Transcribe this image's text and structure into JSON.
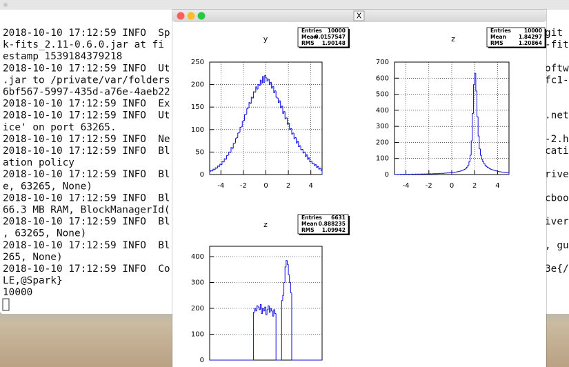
{
  "terminal": {
    "lines": [
      {
        "left": "2018-10-10 17:12:59 INFO  Sp",
        "right": "git"
      },
      {
        "left": "k-fits_2.11-0.6.0.jar at fi",
        "right": "-fit"
      },
      {
        "left": "estamp 1539184379218"
      },
      {
        "left": "2018-10-10 17:12:59 INFO  Ut",
        "right": "oftw"
      },
      {
        "left": ".jar to /private/var/folders",
        "right": "fc1-"
      },
      {
        "left": "6bf567-5997-435d-a76e-4aeb22"
      },
      {
        "left": "2018-10-10 17:12:59 INFO  Ex"
      },
      {
        "left": "2018-10-10 17:12:59 INFO  Ut",
        "right": ".net"
      },
      {
        "left": "ice' on port 63265."
      },
      {
        "left": "2018-10-10 17:12:59 INFO  Ne",
        "right": "-2.h"
      },
      {
        "left": "2018-10-10 17:12:59 INFO  Bl",
        "right": "cati"
      },
      {
        "left": "ation policy"
      },
      {
        "left": "2018-10-10 17:12:59 INFO  Bl",
        "right": "rive"
      },
      {
        "left": "e, 63265, None)"
      },
      {
        "left": "2018-10-10 17:12:59 INFO  Bl",
        "right": "cboo"
      },
      {
        "left": "66.3 MB RAM, BlockManagerId("
      },
      {
        "left": "2018-10-10 17:12:59 INFO  Bl",
        "right": "iver"
      },
      {
        "left": ", 63265, None)"
      },
      {
        "left": "2018-10-10 17:12:59 INFO  Bl",
        "right": ", gu"
      },
      {
        "left": "265, None)"
      },
      {
        "left": "2018-10-10 17:12:59 INFO  Co",
        "right": "3e{/"
      },
      {
        "left": "LE,@Spark}"
      },
      {
        "left": "10000"
      }
    ]
  },
  "x_window": {
    "title": "X"
  },
  "chart_data": [
    {
      "type": "histogram",
      "title": "y",
      "stats": [
        {
          "label": "Entries",
          "value": 10000
        },
        {
          "label": "Mean",
          "value": -0.0157547
        },
        {
          "label": "RMS",
          "value": 1.90148
        }
      ],
      "bins": [
        -5,
        -4.9,
        -4.8,
        -4.7,
        -4.6,
        -4.5,
        -4.4,
        -4.3,
        -4.2,
        -4.1,
        -4,
        -3.9,
        -3.8,
        -3.7,
        -3.6,
        -3.5,
        -3.4,
        -3.3,
        -3.2,
        -3.1,
        -3,
        -2.9,
        -2.8,
        -2.7,
        -2.6,
        -2.5,
        -2.4,
        -2.3,
        -2.2,
        -2.1,
        -2,
        -1.9,
        -1.8,
        -1.7,
        -1.6,
        -1.5,
        -1.4,
        -1.3,
        -1.2,
        -1.1,
        -1,
        -0.9,
        -0.8,
        -0.7,
        -0.6,
        -0.5,
        -0.4,
        -0.3,
        -0.2,
        -0.1,
        0,
        0.1,
        0.2,
        0.3,
        0.4,
        0.5,
        0.6,
        0.7,
        0.8,
        0.9,
        1,
        1.1,
        1.2,
        1.3,
        1.4,
        1.5,
        1.6,
        1.7,
        1.8,
        1.9,
        2,
        2.1,
        2.2,
        2.3,
        2.4,
        2.5,
        2.6,
        2.7,
        2.8,
        2.9,
        3,
        3.1,
        3.2,
        3.3,
        3.4,
        3.5,
        3.6,
        3.7,
        3.8,
        3.9,
        4,
        4.1,
        4.2,
        4.3,
        4.4,
        4.5,
        4.6,
        4.7,
        4.8,
        4.9,
        5
      ],
      "values": [
        7,
        9,
        8,
        12,
        11,
        15,
        14,
        19,
        18,
        23,
        22,
        29,
        28,
        35,
        34,
        42,
        43,
        50,
        49,
        60,
        58,
        69,
        70,
        80,
        82,
        92,
        94,
        105,
        106,
        118,
        120,
        133,
        134,
        146,
        148,
        160,
        158,
        172,
        170,
        184,
        183,
        195,
        190,
        200,
        198,
        210,
        203,
        218,
        205,
        220,
        215,
        208,
        212,
        200,
        205,
        192,
        196,
        182,
        186,
        172,
        170,
        160,
        164,
        148,
        152,
        136,
        140,
        124,
        126,
        112,
        114,
        100,
        102,
        90,
        92,
        80,
        82,
        70,
        74,
        62,
        64,
        55,
        56,
        48,
        50,
        40,
        44,
        34,
        37,
        28,
        30,
        24,
        25,
        20,
        22,
        16,
        18,
        12,
        14,
        9
      ],
      "color": "#1010e0",
      "xlim": [
        -5,
        5
      ],
      "ylim": [
        0,
        250
      ],
      "xticks": [
        -4,
        -2,
        0,
        2,
        4
      ],
      "yticks": [
        0,
        50,
        100,
        150,
        200,
        250
      ],
      "grid": true
    },
    {
      "type": "histogram",
      "title": "z",
      "stats": [
        {
          "label": "Entries",
          "value": 10000
        },
        {
          "label": "Mean",
          "value": 1.84297
        },
        {
          "label": "RMS",
          "value": 1.20864
        }
      ],
      "bins": [
        -5,
        -4.9,
        -4.8,
        -4.7,
        -4.6,
        -4.5,
        -4.4,
        -4.3,
        -4.2,
        -4.1,
        -4,
        -3.9,
        -3.8,
        -3.7,
        -3.6,
        -3.5,
        -3.4,
        -3.3,
        -3.2,
        -3.1,
        -3,
        -2.9,
        -2.8,
        -2.7,
        -2.6,
        -2.5,
        -2.4,
        -2.3,
        -2.2,
        -2.1,
        -2,
        -1.9,
        -1.8,
        -1.7,
        -1.6,
        -1.5,
        -1.4,
        -1.3,
        -1.2,
        -1.1,
        -1,
        -0.9,
        -0.8,
        -0.7,
        -0.6,
        -0.5,
        -0.4,
        -0.3,
        -0.2,
        -0.1,
        0,
        0.1,
        0.2,
        0.3,
        0.4,
        0.5,
        0.6,
        0.7,
        0.8,
        0.9,
        1,
        1.1,
        1.2,
        1.3,
        1.4,
        1.5,
        1.6,
        1.7,
        1.8,
        1.9,
        2,
        2.1,
        2.2,
        2.3,
        2.4,
        2.5,
        2.6,
        2.7,
        2.8,
        2.9,
        3,
        3.1,
        3.2,
        3.3,
        3.4,
        3.5,
        3.6,
        3.7,
        3.8,
        3.9,
        4,
        4.1,
        4.2,
        4.3,
        4.4,
        4.5,
        4.6,
        4.7,
        4.8,
        4.9,
        5
      ],
      "values": [
        1,
        0,
        1,
        1,
        0,
        2,
        1,
        1,
        2,
        1,
        2,
        1,
        2,
        2,
        1,
        3,
        2,
        2,
        3,
        2,
        3,
        3,
        2,
        4,
        3,
        3,
        4,
        3,
        4,
        4,
        4,
        5,
        4,
        5,
        5,
        6,
        5,
        6,
        6,
        7,
        7,
        8,
        7,
        8,
        9,
        9,
        10,
        10,
        11,
        12,
        12,
        13,
        14,
        15,
        16,
        18,
        19,
        21,
        23,
        26,
        29,
        33,
        38,
        46,
        58,
        80,
        120,
        210,
        380,
        560,
        630,
        520,
        360,
        240,
        160,
        120,
        95,
        80,
        68,
        58,
        50,
        45,
        40,
        36,
        33,
        30,
        28,
        26,
        24,
        22,
        20,
        18,
        17,
        16,
        15,
        14,
        13,
        12,
        11,
        10
      ],
      "color": "#1010e0",
      "xlim": [
        -5,
        5
      ],
      "ylim": [
        0,
        700
      ],
      "xticks": [
        -4,
        -2,
        0,
        2,
        4
      ],
      "yticks": [
        0,
        100,
        200,
        300,
        400,
        500,
        600,
        700
      ],
      "grid": true
    },
    {
      "type": "histogram",
      "title": "z",
      "stats": [
        {
          "label": "Entries",
          "value": 6631
        },
        {
          "label": "Mean",
          "value": 0.888235
        },
        {
          "label": "RMS",
          "value": 1.09942
        }
      ],
      "bins": [
        -5,
        -4.9,
        -4.8,
        -4.7,
        -4.6,
        -4.5,
        -4.4,
        -4.3,
        -4.2,
        -4.1,
        -4,
        -3.9,
        -3.8,
        -3.7,
        -3.6,
        -3.5,
        -3.4,
        -3.3,
        -3.2,
        -3.1,
        -3,
        -2.9,
        -2.8,
        -2.7,
        -2.6,
        -2.5,
        -2.4,
        -2.3,
        -2.2,
        -2.1,
        -2,
        -1.9,
        -1.8,
        -1.7,
        -1.6,
        -1.5,
        -1.4,
        -1.3,
        -1.2,
        -1.1,
        -1,
        -0.9,
        -0.8,
        -0.7,
        -0.6,
        -0.5,
        -0.4,
        -0.3,
        -0.2,
        -0.1,
        0,
        0.1,
        0.2,
        0.3,
        0.4,
        0.5,
        0.6,
        0.7,
        0.8,
        0.9,
        1,
        1.1,
        1.2,
        1.3,
        1.4,
        1.5,
        1.6,
        1.7,
        1.8,
        1.9,
        2,
        2.1,
        2.2,
        2.3,
        2.4,
        2.5,
        2.6,
        2.7,
        2.8,
        2.9,
        3,
        3.1,
        3.2,
        3.3,
        3.4,
        3.5,
        3.6,
        3.7,
        3.8,
        3.9,
        4,
        4.1,
        4.2,
        4.3,
        4.4,
        4.5,
        4.6,
        4.7,
        4.8,
        4.9,
        5
      ],
      "values": [
        0,
        0,
        0,
        0,
        0,
        0,
        0,
        0,
        0,
        0,
        0,
        0,
        0,
        0,
        0,
        0,
        0,
        0,
        0,
        0,
        0,
        0,
        0,
        0,
        0,
        0,
        0,
        0,
        0,
        0,
        0,
        0,
        0,
        0,
        0,
        0,
        0,
        0,
        0,
        185,
        200,
        190,
        210,
        205,
        195,
        215,
        180,
        200,
        190,
        205,
        175,
        195,
        210,
        185,
        200,
        190,
        170,
        195,
        180,
        0,
        0,
        0,
        0,
        0,
        230,
        250,
        300,
        360,
        385,
        370,
        330,
        300,
        260,
        0,
        0,
        0,
        0,
        0,
        0,
        0,
        0,
        0,
        0,
        0,
        0,
        0,
        0,
        0,
        0,
        0,
        0,
        0,
        0,
        0,
        0,
        0,
        0,
        0,
        0,
        0,
        0
      ],
      "color": "#1010e0",
      "xlim": [
        -5,
        5
      ],
      "ylim": [
        0,
        440
      ],
      "yticks": [
        0,
        100,
        200,
        300,
        400
      ],
      "grid": true
    }
  ]
}
